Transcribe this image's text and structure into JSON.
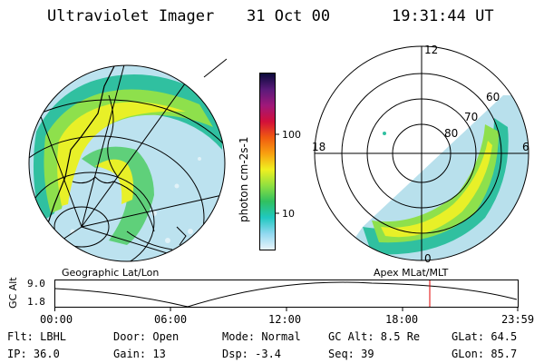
{
  "header": {
    "instrument": "Ultraviolet Imager",
    "date": "31 Oct 00",
    "time": "19:31:44 UT"
  },
  "colorbar": {
    "unit_label": "photon cm-2s-1",
    "ticks": [
      "100",
      "10"
    ],
    "colors": [
      "#0a0a3a",
      "#5a1a7a",
      "#a0187a",
      "#d20f3a",
      "#f05a10",
      "#f8a010",
      "#f0f020",
      "#90e040",
      "#30c060",
      "#20c8c0",
      "#90d8f0",
      "#e8f4fa"
    ]
  },
  "polar_plot": {
    "lat_labels": [
      "60",
      "70",
      "80"
    ],
    "mlt_labels": {
      "top": "12",
      "left": "18",
      "right": "6",
      "bottom": "0"
    }
  },
  "frame_labels": {
    "left": "Geographic Lat/Lon",
    "right": "Apex MLat/MLT"
  },
  "altitude_plot": {
    "ylabel": "GC Alt",
    "yticks": [
      "9.0",
      "1.8"
    ],
    "xticks": [
      "00:00",
      "06:00",
      "12:00",
      "18:00",
      "23:59"
    ],
    "marker_color": "#e00000"
  },
  "info": {
    "row1": {
      "filter": "Flt: LBHL",
      "door": "Door: Open",
      "mode": "Mode: Normal",
      "gc_alt": "GC Alt: 8.5 Re",
      "glat": "GLat: 64.5"
    },
    "row2": {
      "ip": "IP: 36.0",
      "gain": "Gain: 13",
      "dsp": "Dsp:   -3.4",
      "seq": "Seq: 39",
      "glon": "GLon: 85.7"
    }
  }
}
